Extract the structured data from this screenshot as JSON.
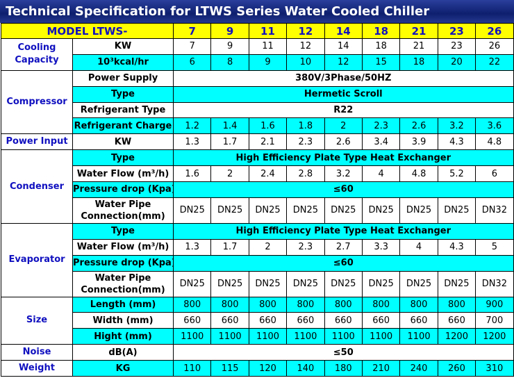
{
  "title": "Technical Specification for LTWS Series Water Cooled Chiller",
  "header": {
    "label": "MODEL LTWS-",
    "fill": "#ffff00",
    "models": [
      "7",
      "9",
      "11",
      "12",
      "14",
      "18",
      "21",
      "23",
      "26"
    ]
  },
  "groups": [
    {
      "label": "Cooling Capacity",
      "rows": [
        {
          "param": "KW",
          "fill": "#ffffff",
          "values": [
            "7",
            "9",
            "11",
            "12",
            "14",
            "18",
            "21",
            "23",
            "26"
          ]
        },
        {
          "param": "10³kcal/hr",
          "fill": "#00ffff",
          "values": [
            "6",
            "8",
            "9",
            "10",
            "12",
            "15",
            "18",
            "20",
            "22"
          ]
        }
      ]
    },
    {
      "label": "Compressor",
      "rows": [
        {
          "param": "Power Supply",
          "fill": "#ffffff",
          "value": "380V/3Phase/50HZ"
        },
        {
          "param": "Type",
          "fill": "#00ffff",
          "value": "Hermetic Scroll"
        },
        {
          "param": "Refrigerant Type",
          "fill": "#ffffff",
          "value": "R22"
        },
        {
          "param": "Refrigerant Charge",
          "fill": "#00ffff",
          "values": [
            "1.2",
            "1.4",
            "1.6",
            "1.8",
            "2",
            "2.3",
            "2.6",
            "3.2",
            "3.6"
          ]
        }
      ]
    },
    {
      "label": "Power Input",
      "rows": [
        {
          "param": "KW",
          "fill": "#ffffff",
          "values": [
            "1.3",
            "1.7",
            "2.1",
            "2.3",
            "2.6",
            "3.4",
            "3.9",
            "4.3",
            "4.8"
          ]
        }
      ]
    },
    {
      "label": "Condenser",
      "rows": [
        {
          "param": "Type",
          "fill": "#00ffff",
          "value": "High Efficiency Plate Type Heat Exchanger"
        },
        {
          "param": "Water Flow (m³/h)",
          "fill": "#ffffff",
          "values": [
            "1.6",
            "2",
            "2.4",
            "2.8",
            "3.2",
            "4",
            "4.8",
            "5.2",
            "6"
          ]
        },
        {
          "param": "Pressure drop (Kpa)",
          "fill": "#00ffff",
          "value": "≤60"
        },
        {
          "param": "Water Pipe Connection(mm)",
          "fill": "#ffffff",
          "values": [
            "DN25",
            "DN25",
            "DN25",
            "DN25",
            "DN25",
            "DN25",
            "DN25",
            "DN25",
            "DN32"
          ]
        }
      ]
    },
    {
      "label": "Evaporator",
      "rows": [
        {
          "param": "Type",
          "fill": "#00ffff",
          "value": "High Efficiency Plate Type Heat Exchanger"
        },
        {
          "param": "Water Flow (m³/h)",
          "fill": "#ffffff",
          "values": [
            "1.3",
            "1.7",
            "2",
            "2.3",
            "2.7",
            "3.3",
            "4",
            "4.3",
            "5"
          ]
        },
        {
          "param": "Pressure drop (Kpa)",
          "fill": "#00ffff",
          "value": "≤60"
        },
        {
          "param": "Water Pipe Connection(mm)",
          "fill": "#ffffff",
          "values": [
            "DN25",
            "DN25",
            "DN25",
            "DN25",
            "DN25",
            "DN25",
            "DN25",
            "DN25",
            "DN32"
          ]
        }
      ]
    },
    {
      "label": "Size",
      "rows": [
        {
          "param": "Length (mm)",
          "fill": "#00ffff",
          "values": [
            "800",
            "800",
            "800",
            "800",
            "800",
            "800",
            "800",
            "800",
            "900"
          ]
        },
        {
          "param": "Width (mm)",
          "fill": "#ffffff",
          "values": [
            "660",
            "660",
            "660",
            "660",
            "660",
            "660",
            "660",
            "660",
            "700"
          ]
        },
        {
          "param": "Hight (mm)",
          "fill": "#00ffff",
          "values": [
            "1100",
            "1100",
            "1100",
            "1100",
            "1100",
            "1100",
            "1100",
            "1200",
            "1200"
          ]
        }
      ]
    },
    {
      "label": "Noise",
      "rows": [
        {
          "param": "dB(A)",
          "fill": "#ffffff",
          "value": "≤50"
        }
      ]
    },
    {
      "label": "Weight",
      "rows": [
        {
          "param": "KG",
          "fill": "#00ffff",
          "values": [
            "110",
            "115",
            "120",
            "140",
            "180",
            "210",
            "240",
            "260",
            "310"
          ]
        }
      ]
    }
  ]
}
